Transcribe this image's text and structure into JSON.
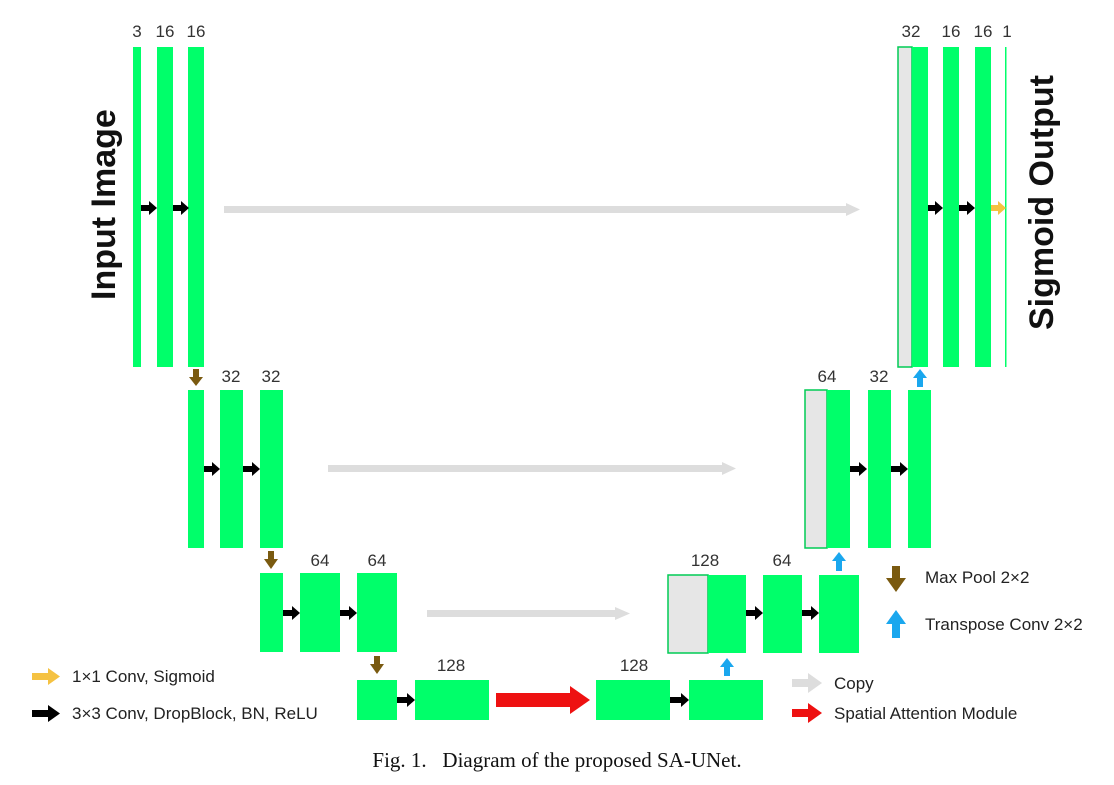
{
  "title_input": "Input Image",
  "title_output": "Sigmoid Output",
  "channels": {
    "enc1": [
      "3",
      "16",
      "16"
    ],
    "enc2": [
      "32",
      "32"
    ],
    "enc3": [
      "64",
      "64"
    ],
    "bottleneck": [
      "128",
      "128"
    ],
    "dec3": [
      "128",
      "64"
    ],
    "dec2": [
      "64",
      "32"
    ],
    "dec1": [
      "32",
      "16",
      "16",
      "1"
    ]
  },
  "legend": {
    "conv1x1": "1×1 Conv, Sigmoid",
    "conv3x3": "3×3 Conv, DropBlock, BN, ReLU",
    "maxpool": "Max Pool 2×2",
    "transpose": "Transpose Conv 2×2",
    "copy": "Copy",
    "sam": "Spatial Attention Module"
  },
  "caption": "Fig. 1.   Diagram of the proposed SA-UNet.",
  "colors": {
    "block": "#00ff6a",
    "concat": "#e6e6e6",
    "conv_arrow": "#000000",
    "pool_arrow": "#7a5a10",
    "up_arrow": "#1aa7ee",
    "copy_arrow": "#dddddd",
    "sam_arrow": "#ee1111",
    "sigmoid_arrow": "#f5c242"
  }
}
